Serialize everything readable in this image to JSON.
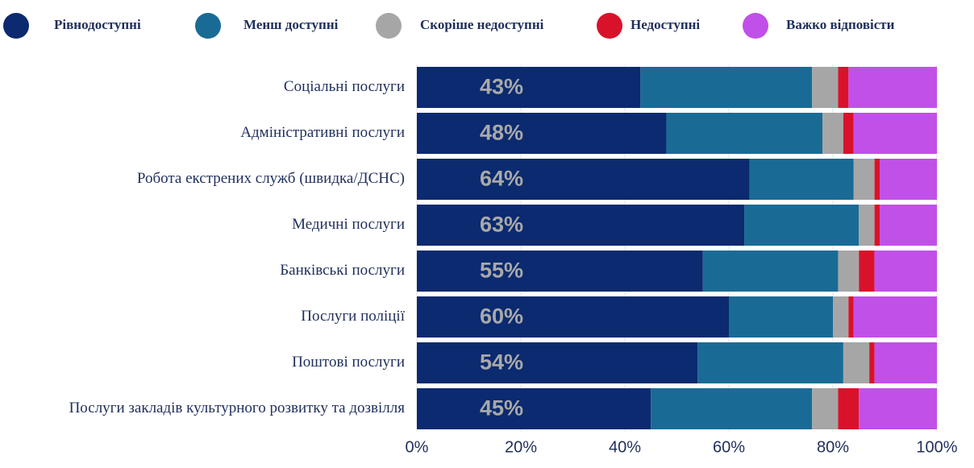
{
  "chart_data": {
    "type": "stacked-bar-horizontal",
    "categories": [
      "Соціальні послуги",
      "Адміністративні послуги",
      "Робота екстрених служб (швидка/ДСНС)",
      "Медичні послуги",
      "Банківські послуги",
      "Послуги поліції",
      "Поштові послуги",
      "Послуги закладів культурного розвитку та дозвілля"
    ],
    "series": [
      {
        "name": "Рівнодоступні",
        "color": "#0b2a6f",
        "values": [
          43,
          48,
          64,
          63,
          55,
          60,
          54,
          45
        ],
        "value_labels": [
          "43%",
          "48%",
          "64%",
          "63%",
          "55%",
          "60%",
          "54%",
          "45%"
        ]
      },
      {
        "name": "Менш доступні",
        "color": "#196b96",
        "values": [
          33,
          30,
          20,
          22,
          26,
          20,
          28,
          31
        ]
      },
      {
        "name": "Скоріше недоступні",
        "color": "#a6a6a6",
        "values": [
          5,
          4,
          4,
          3,
          4,
          3,
          5,
          5
        ]
      },
      {
        "name": "Недоступні",
        "color": "#d9122b",
        "values": [
          2,
          2,
          1,
          1,
          3,
          1,
          1,
          4
        ]
      },
      {
        "name": "Важко відповісти",
        "color": "#c150e8",
        "values": [
          17,
          16,
          11,
          11,
          12,
          16,
          12,
          15
        ]
      }
    ],
    "xlim": [
      0,
      100
    ],
    "xticks": [
      {
        "value": 0,
        "label": "0%"
      },
      {
        "value": 20,
        "label": "20%"
      },
      {
        "value": 40,
        "label": "40%"
      },
      {
        "value": 60,
        "label": "60%"
      },
      {
        "value": 80,
        "label": "80%"
      },
      {
        "value": 100,
        "label": "100%"
      }
    ],
    "grid": true,
    "legend": "top"
  }
}
